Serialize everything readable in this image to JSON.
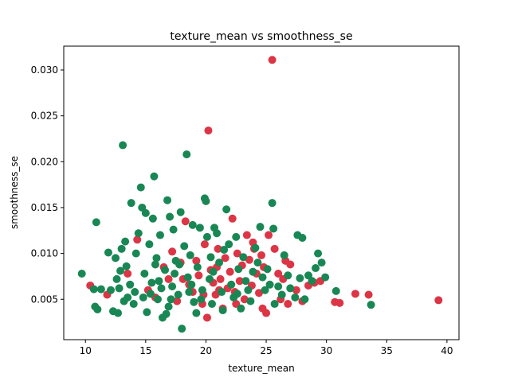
{
  "chart_data": {
    "type": "scatter",
    "title": "texture_mean vs smoothness_se",
    "xlabel": "texture_mean",
    "ylabel": "smoothness_se",
    "xlim": [
      8.2,
      41.0
    ],
    "ylim": [
      0.0006,
      0.0326
    ],
    "xticks": [
      10,
      15,
      20,
      25,
      30,
      35,
      40
    ],
    "xtick_labels": [
      "10",
      "15",
      "20",
      "25",
      "30",
      "35",
      "40"
    ],
    "yticks": [
      0.005,
      0.01,
      0.015,
      0.02,
      0.025,
      0.03
    ],
    "ytick_labels": [
      "0.005",
      "0.010",
      "0.015",
      "0.020",
      "0.025",
      "0.030"
    ],
    "grid": false,
    "legend": "none",
    "series": [
      {
        "color": "#dc3545",
        "points": [
          [
            10.4,
            0.0065
          ],
          [
            11.8,
            0.0055
          ],
          [
            13.5,
            0.0078
          ],
          [
            14.3,
            0.0115
          ],
          [
            15.2,
            0.006
          ],
          [
            15.8,
            0.0052
          ],
          [
            16.5,
            0.0085
          ],
          [
            16.9,
            0.0072
          ],
          [
            17.2,
            0.0102
          ],
          [
            17.6,
            0.0048
          ],
          [
            17.9,
            0.009
          ],
          [
            18.3,
            0.0135
          ],
          [
            18.6,
            0.0066
          ],
          [
            18.9,
            0.0058
          ],
          [
            19.2,
            0.0092
          ],
          [
            19.4,
            0.0076
          ],
          [
            19.7,
            0.0045
          ],
          [
            19.9,
            0.011
          ],
          [
            20.1,
            0.003
          ],
          [
            20.2,
            0.0234
          ],
          [
            20.4,
            0.0082
          ],
          [
            20.6,
            0.0068
          ],
          [
            20.8,
            0.0055
          ],
          [
            21.0,
            0.0105
          ],
          [
            21.2,
            0.0072
          ],
          [
            21.4,
            0.004
          ],
          [
            21.6,
            0.0095
          ],
          [
            21.8,
            0.0062
          ],
          [
            22.0,
            0.008
          ],
          [
            22.2,
            0.0138
          ],
          [
            22.4,
            0.0058
          ],
          [
            22.6,
            0.01
          ],
          [
            22.8,
            0.007
          ],
          [
            23.0,
            0.0087
          ],
          [
            23.2,
            0.005
          ],
          [
            23.4,
            0.012
          ],
          [
            23.6,
            0.0093
          ],
          [
            23.8,
            0.0065
          ],
          [
            24.0,
            0.0105
          ],
          [
            24.2,
            0.0078
          ],
          [
            24.4,
            0.0057
          ],
          [
            24.6,
            0.0098
          ],
          [
            24.8,
            0.0085
          ],
          [
            25.0,
            0.0035
          ],
          [
            25.2,
            0.012
          ],
          [
            25.5,
            0.0311
          ],
          [
            25.7,
            0.0105
          ],
          [
            26.0,
            0.0078
          ],
          [
            26.2,
            0.005
          ],
          [
            26.4,
            0.0072
          ],
          [
            26.6,
            0.0092
          ],
          [
            26.8,
            0.0045
          ],
          [
            27.0,
            0.0088
          ],
          [
            27.5,
            0.006
          ],
          [
            28.0,
            0.0048
          ],
          [
            28.5,
            0.0065
          ],
          [
            29.0,
            0.0068
          ],
          [
            29.5,
            0.007
          ],
          [
            30.7,
            0.0047
          ],
          [
            31.1,
            0.0046
          ],
          [
            32.4,
            0.0056
          ],
          [
            33.5,
            0.0055
          ],
          [
            39.3,
            0.0049
          ],
          [
            22.5,
            0.0045
          ],
          [
            21.1,
            0.006
          ],
          [
            19.8,
            0.0055
          ],
          [
            23.9,
            0.0112
          ],
          [
            24.7,
            0.004
          ],
          [
            20.9,
            0.0085
          ],
          [
            18.1,
            0.0072
          ]
        ]
      },
      {
        "color": "#198754",
        "points": [
          [
            9.7,
            0.0078
          ],
          [
            10.7,
            0.0061
          ],
          [
            10.8,
            0.0042
          ],
          [
            10.9,
            0.0134
          ],
          [
            11.0,
            0.0039
          ],
          [
            11.3,
            0.0061
          ],
          [
            11.9,
            0.0101
          ],
          [
            12.1,
            0.006
          ],
          [
            12.3,
            0.0037
          ],
          [
            12.5,
            0.0095
          ],
          [
            12.7,
            0.0035
          ],
          [
            12.8,
            0.0062
          ],
          [
            12.9,
            0.0081
          ],
          [
            13.0,
            0.0105
          ],
          [
            13.1,
            0.0218
          ],
          [
            13.2,
            0.0048
          ],
          [
            13.3,
            0.0113
          ],
          [
            13.5,
            0.0052
          ],
          [
            13.7,
            0.0066
          ],
          [
            13.8,
            0.0155
          ],
          [
            14.0,
            0.0045
          ],
          [
            14.2,
            0.01
          ],
          [
            14.4,
            0.0122
          ],
          [
            14.6,
            0.0172
          ],
          [
            14.7,
            0.015
          ],
          [
            14.8,
            0.0052
          ],
          [
            15.0,
            0.0144
          ],
          [
            15.1,
            0.0036
          ],
          [
            15.3,
            0.011
          ],
          [
            15.5,
            0.0068
          ],
          [
            15.6,
            0.0138
          ],
          [
            15.7,
            0.0184
          ],
          [
            15.9,
            0.0095
          ],
          [
            16.0,
            0.005
          ],
          [
            16.2,
            0.012
          ],
          [
            16.4,
            0.003
          ],
          [
            16.6,
            0.0082
          ],
          [
            16.8,
            0.0158
          ],
          [
            16.9,
            0.0042
          ],
          [
            17.0,
            0.014
          ],
          [
            17.2,
            0.0064
          ],
          [
            17.3,
            0.0126
          ],
          [
            17.5,
            0.0092
          ],
          [
            17.7,
            0.0055
          ],
          [
            17.9,
            0.0145
          ],
          [
            18.0,
            0.0018
          ],
          [
            18.2,
            0.0108
          ],
          [
            18.4,
            0.0208
          ],
          [
            18.5,
            0.0074
          ],
          [
            18.7,
            0.0098
          ],
          [
            18.9,
            0.0131
          ],
          [
            19.0,
            0.0047
          ],
          [
            19.3,
            0.0085
          ],
          [
            19.5,
            0.0128
          ],
          [
            19.7,
            0.006
          ],
          [
            19.9,
            0.016
          ],
          [
            20.0,
            0.0157
          ],
          [
            20.1,
            0.0118
          ],
          [
            20.3,
            0.0072
          ],
          [
            20.5,
            0.0045
          ],
          [
            20.7,
            0.0128
          ],
          [
            20.9,
            0.0122
          ],
          [
            21.1,
            0.009
          ],
          [
            21.3,
            0.0058
          ],
          [
            21.5,
            0.0104
          ],
          [
            21.7,
            0.0148
          ],
          [
            21.9,
            0.011
          ],
          [
            22.1,
            0.0066
          ],
          [
            22.3,
            0.0052
          ],
          [
            22.5,
            0.0118
          ],
          [
            22.7,
            0.0083
          ],
          [
            22.9,
            0.004
          ],
          [
            23.1,
            0.0096
          ],
          [
            23.3,
            0.007
          ],
          [
            23.5,
            0.006
          ],
          [
            23.7,
            0.0048
          ],
          [
            23.9,
            0.008
          ],
          [
            24.1,
            0.0106
          ],
          [
            24.3,
            0.009
          ],
          [
            24.5,
            0.0129
          ],
          [
            24.7,
            0.0074
          ],
          [
            24.9,
            0.006
          ],
          [
            25.1,
            0.0083
          ],
          [
            25.3,
            0.0066
          ],
          [
            25.5,
            0.0155
          ],
          [
            25.6,
            0.0127
          ],
          [
            25.7,
            0.0045
          ],
          [
            26.0,
            0.0064
          ],
          [
            26.3,
            0.0055
          ],
          [
            26.5,
            0.0098
          ],
          [
            26.8,
            0.0076
          ],
          [
            27.0,
            0.0062
          ],
          [
            27.4,
            0.0052
          ],
          [
            27.6,
            0.012
          ],
          [
            27.8,
            0.0073
          ],
          [
            28.0,
            0.0117
          ],
          [
            28.2,
            0.005
          ],
          [
            28.5,
            0.0076
          ],
          [
            28.8,
            0.007
          ],
          [
            29.1,
            0.0084
          ],
          [
            29.3,
            0.01
          ],
          [
            29.6,
            0.009
          ],
          [
            29.9,
            0.0074
          ],
          [
            30.8,
            0.0059
          ],
          [
            33.7,
            0.0044
          ],
          [
            14.9,
            0.0078
          ],
          [
            15.4,
            0.0056
          ],
          [
            16.1,
            0.007
          ],
          [
            16.7,
            0.0034
          ],
          [
            17.4,
            0.0078
          ],
          [
            18.6,
            0.0058
          ],
          [
            19.2,
            0.0035
          ],
          [
            20.6,
            0.008
          ],
          [
            21.4,
            0.0038
          ],
          [
            22.6,
            0.0056
          ],
          [
            12.6,
            0.0072
          ],
          [
            13.4,
            0.0086
          ],
          [
            14.1,
            0.0058
          ],
          [
            15.8,
            0.0088
          ],
          [
            16.3,
            0.0062
          ],
          [
            17.1,
            0.005
          ],
          [
            17.8,
            0.0088
          ],
          [
            18.8,
            0.0066
          ],
          [
            19.6,
            0.005
          ],
          [
            20.4,
            0.0096
          ]
        ]
      }
    ]
  }
}
